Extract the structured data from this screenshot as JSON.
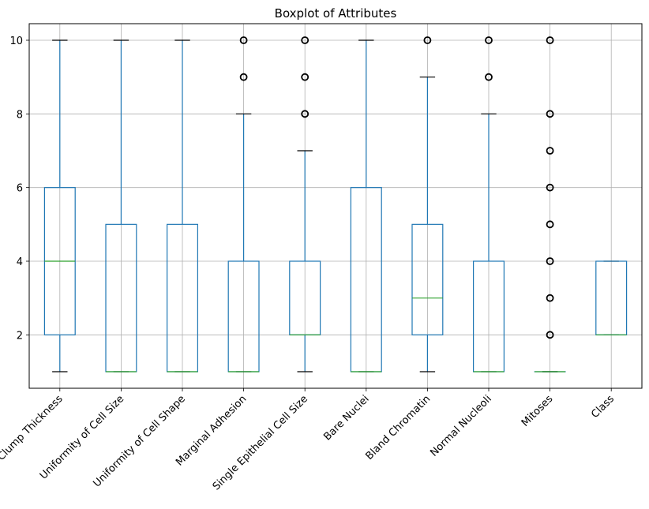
{
  "chart_data": {
    "type": "boxplot",
    "title": "Boxplot of Attributes",
    "xlabel": "",
    "ylabel": "",
    "ylim": [
      0.55,
      10.45
    ],
    "yticks": [
      2,
      4,
      6,
      8,
      10
    ],
    "grid": true,
    "box_color": "#1f77b4",
    "median_color": "#2ca02c",
    "categories": [
      "Clump Thickness",
      "Uniformity of Cell Size",
      "Uniformity of Cell Shape",
      "Marginal Adhesion",
      "Single Epithelial Cell Size",
      "Bare Nuclei",
      "Bland Chromatin",
      "Normal Nucleoli",
      "Mitoses",
      "Class"
    ],
    "boxes": [
      {
        "whislo": 1,
        "q1": 2,
        "med": 4,
        "q3": 6,
        "whishi": 10,
        "fliers": []
      },
      {
        "whislo": 1,
        "q1": 1,
        "med": 1,
        "q3": 5,
        "whishi": 10,
        "fliers": []
      },
      {
        "whislo": 1,
        "q1": 1,
        "med": 1,
        "q3": 5,
        "whishi": 10,
        "fliers": []
      },
      {
        "whislo": 1,
        "q1": 1,
        "med": 1,
        "q3": 4,
        "whishi": 8,
        "fliers": [
          9,
          10
        ]
      },
      {
        "whislo": 1,
        "q1": 2,
        "med": 2,
        "q3": 4,
        "whishi": 7,
        "fliers": [
          8,
          9,
          10
        ]
      },
      {
        "whislo": 1,
        "q1": 1,
        "med": 1,
        "q3": 6,
        "whishi": 10,
        "fliers": []
      },
      {
        "whislo": 1,
        "q1": 2,
        "med": 3,
        "q3": 5,
        "whishi": 9,
        "fliers": [
          10
        ]
      },
      {
        "whislo": 1,
        "q1": 1,
        "med": 1,
        "q3": 4,
        "whishi": 8,
        "fliers": [
          9,
          10
        ]
      },
      {
        "whislo": 1,
        "q1": 1,
        "med": 1,
        "q3": 1,
        "whishi": 1,
        "fliers": [
          2,
          3,
          4,
          5,
          6,
          7,
          8,
          10
        ]
      },
      {
        "whislo": 2,
        "q1": 2,
        "med": 2,
        "q3": 4,
        "whishi": 4,
        "fliers": []
      }
    ]
  }
}
